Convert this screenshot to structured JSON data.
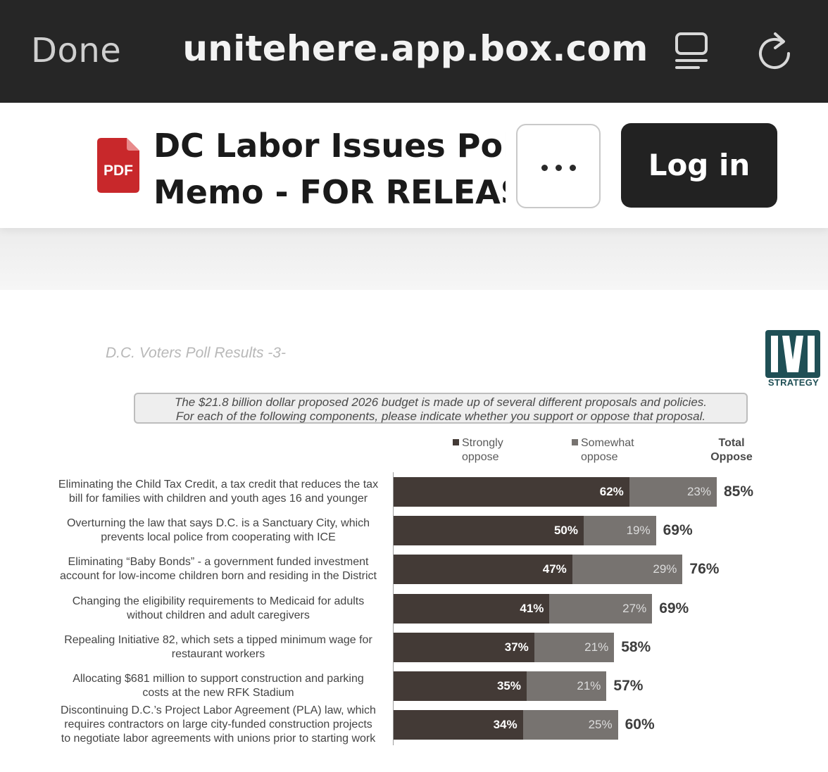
{
  "browser": {
    "done_label": "Done",
    "url": "unitehere.app.box.com",
    "reader_icon": "reader-view-icon",
    "reload_icon": "reload-icon"
  },
  "file": {
    "type_badge": "PDF",
    "title_line1": "DC Labor Issues Poll",
    "title_line2": "Memo - FOR RELEAS...",
    "more_icon": "more-options-icon",
    "login_label": "Log in"
  },
  "document": {
    "page_header": "D.C. Voters Poll Results -3-",
    "logo_text": "STRATEGY",
    "question_line1": "The $21.8 billion dollar proposed 2026 budget is made up of several different proposals and policies.",
    "question_line2": "For each of the following components, please indicate whether you support or oppose that proposal."
  },
  "colors": {
    "strongly_oppose": "#433a36",
    "somewhat_oppose": "#777370",
    "pdf_red": "#c8282b",
    "logo_teal": "#1f4f55"
  },
  "chart_data": {
    "type": "bar",
    "orientation": "horizontal",
    "stacked": true,
    "legend": {
      "strong_line1": "Strongly",
      "strong_line2": "oppose",
      "some_line1": "Somewhat",
      "some_line2": "oppose",
      "total_line1": "Total",
      "total_line2": "Oppose"
    },
    "categories": [
      [
        "Eliminating the Child Tax Credit, a tax credit that reduces the tax",
        "bill for families with children and youth ages 16 and younger"
      ],
      [
        "Overturning the law that says D.C. is a Sanctuary City, which",
        "prevents local police from cooperating with ICE"
      ],
      [
        "Eliminating “Baby Bonds” - a government funded investment",
        "account for low-income children born and residing in the District"
      ],
      [
        "Changing the eligibility requirements to Medicaid for adults",
        "without children and adult caregivers"
      ],
      [
        "Repealing Initiative 82, which sets a tipped minimum wage for",
        "restaurant workers"
      ],
      [
        "Allocating $681 million to support construction and parking",
        "costs at the new RFK Stadium"
      ],
      [
        "Discontinuing D.C.’s Project Labor Agreement (PLA) law, which",
        "requires contractors on large city-funded construction projects",
        "to negotiate labor agreements with unions prior to starting work"
      ]
    ],
    "series": [
      {
        "name": "Strongly oppose",
        "values": [
          62,
          50,
          47,
          41,
          37,
          35,
          34
        ]
      },
      {
        "name": "Somewhat oppose",
        "values": [
          23,
          19,
          29,
          27,
          21,
          21,
          25
        ]
      }
    ],
    "totals": [
      85,
      69,
      76,
      69,
      58,
      57,
      60
    ],
    "value_suffix": "%"
  }
}
